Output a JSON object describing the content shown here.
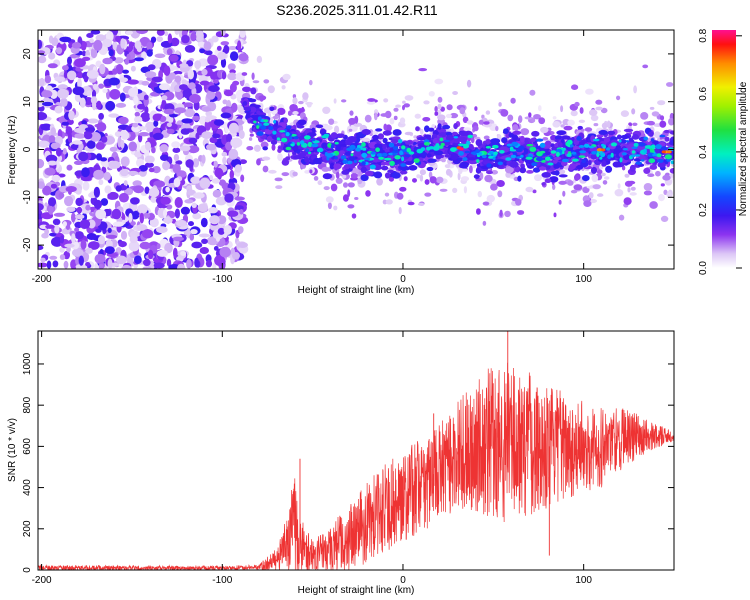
{
  "title": "S236.2025.311.01.42.R11",
  "chart_data": [
    {
      "type": "heatmap",
      "xlabel": "Height of straight line (km)",
      "ylabel": "Frequency (Hz)",
      "xlim": [
        -202,
        150
      ],
      "ylim": [
        -25,
        25
      ],
      "xticks": [
        -200,
        -100,
        0,
        100
      ],
      "xtick_labels": [
        "-200",
        "-100",
        "0",
        "100"
      ],
      "yticks": [
        -20,
        -10,
        0,
        10,
        20
      ],
      "ytick_labels": [
        "-20",
        "-10",
        "0",
        "10",
        "20"
      ],
      "colorbar": {
        "label": "Normalized spectral amplitude",
        "range": [
          0,
          0.82
        ],
        "ticks": [
          0.0,
          0.2,
          0.4,
          0.6,
          0.8
        ],
        "tick_labels": [
          "0.0",
          "0.2",
          "0.4",
          "0.6",
          "0.8"
        ]
      },
      "noise_region_x": [
        -202,
        -88
      ],
      "ridge": {
        "x": [
          -88,
          -80,
          -70,
          -60,
          -50,
          -40,
          -30,
          -20,
          -10,
          0,
          10,
          20,
          30,
          40,
          50,
          60,
          70,
          80,
          90,
          100,
          110,
          120,
          130,
          140,
          150
        ],
        "freq": [
          11,
          6,
          3.5,
          2,
          0.5,
          -0.5,
          -1.2,
          -1.2,
          -0.8,
          -1,
          -0.5,
          1.5,
          0.5,
          -1,
          -1.5,
          -0.5,
          -0.5,
          -1.5,
          -0.5,
          -0.5,
          0,
          -1,
          -0.5,
          -0.5,
          -0.5
        ]
      },
      "peak_amplitude": 0.82,
      "peak_locations_x": [
        33,
        108,
        145
      ]
    },
    {
      "type": "line",
      "xlabel": "Height of straight line (km)",
      "ylabel": "SNR (10 * v/v)",
      "xlim": [
        -202,
        150
      ],
      "ylim": [
        0,
        1160
      ],
      "xticks": [
        -200,
        -100,
        0,
        100
      ],
      "xtick_labels": [
        "-200",
        "-100",
        "0",
        "100"
      ],
      "yticks": [
        0,
        200,
        400,
        600,
        800,
        1000
      ],
      "ytick_labels": [
        "0",
        "200",
        "400",
        "600",
        "800",
        "1000"
      ],
      "series": [
        {
          "name": "SNR",
          "color": "#ee3333",
          "envelope_x": [
            -202,
            -150,
            -100,
            -80,
            -70,
            -65,
            -60,
            -58,
            -50,
            -40,
            -30,
            -20,
            -10,
            0,
            10,
            20,
            30,
            40,
            50,
            60,
            70,
            80,
            90,
            100,
            110,
            120,
            130,
            140,
            150
          ],
          "envelope_mean": [
            10,
            10,
            10,
            14,
            45,
            120,
            220,
            130,
            60,
            110,
            150,
            230,
            300,
            360,
            410,
            470,
            560,
            600,
            620,
            620,
            620,
            600,
            600,
            600,
            600,
            640,
            650,
            650,
            650
          ],
          "envelope_spread": [
            12,
            12,
            10,
            12,
            60,
            120,
            260,
            150,
            80,
            120,
            160,
            200,
            220,
            220,
            230,
            240,
            260,
            320,
            380,
            420,
            360,
            300,
            260,
            220,
            200,
            160,
            110,
            60,
            25
          ]
        }
      ],
      "spikes": [
        {
          "x": -57,
          "value": 540
        },
        {
          "x": 17,
          "value": 760
        },
        {
          "x": 58,
          "value": 1160
        },
        {
          "x": 81,
          "value": 70
        }
      ]
    }
  ]
}
